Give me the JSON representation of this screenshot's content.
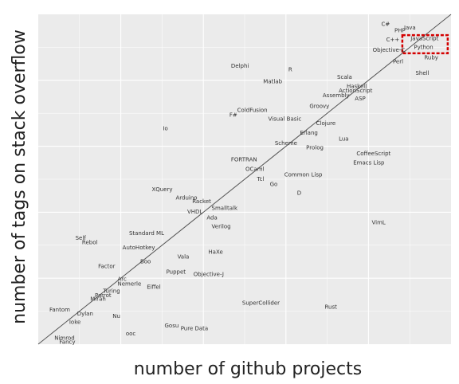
{
  "chart_data": {
    "type": "scatter",
    "title": "",
    "xlabel": "number of github projects",
    "ylabel": "number of tags on stack overflow",
    "xlim": [
      0,
      100
    ],
    "ylim": [
      0,
      100
    ],
    "grid": true,
    "diagonal_line": true,
    "highlight_box": {
      "x0": 88.2,
      "y0": 88.2,
      "x1": 99.2,
      "y1": 93.7,
      "color": "#d40000"
    },
    "points": [
      {
        "name": "C#",
        "x": 83.1,
        "y": 96.5
      },
      {
        "name": "Java",
        "x": 88.6,
        "y": 95.4
      },
      {
        "name": "PHP",
        "x": 86.3,
        "y": 94.6
      },
      {
        "name": "C++",
        "x": 84.3,
        "y": 91.8
      },
      {
        "name": "JavaScript",
        "x": 90.2,
        "y": 92.2
      },
      {
        "name": "Python",
        "x": 91.0,
        "y": 89.5
      },
      {
        "name": "Objective-C",
        "x": 81.0,
        "y": 88.7
      },
      {
        "name": "Ruby",
        "x": 93.5,
        "y": 86.4
      },
      {
        "name": "Perl",
        "x": 85.9,
        "y": 85.1
      },
      {
        "name": "Shell",
        "x": 91.4,
        "y": 81.6
      },
      {
        "name": "Delphi",
        "x": 46.7,
        "y": 83.8
      },
      {
        "name": "R",
        "x": 60.6,
        "y": 82.7
      },
      {
        "name": "Scala",
        "x": 72.4,
        "y": 80.4
      },
      {
        "name": "Matlab",
        "x": 54.5,
        "y": 79.1
      },
      {
        "name": "Haskell",
        "x": 74.7,
        "y": 77.6
      },
      {
        "name": "ActionScript",
        "x": 72.8,
        "y": 76.3
      },
      {
        "name": "Assembly",
        "x": 68.9,
        "y": 74.9
      },
      {
        "name": "ASP",
        "x": 76.7,
        "y": 73.9
      },
      {
        "name": "Groovy",
        "x": 65.7,
        "y": 71.6
      },
      {
        "name": "ColdFusion",
        "x": 48.2,
        "y": 70.4
      },
      {
        "name": "F#",
        "x": 46.3,
        "y": 69.0
      },
      {
        "name": "Visual Basic",
        "x": 55.7,
        "y": 67.7
      },
      {
        "name": "Clojure",
        "x": 67.3,
        "y": 66.4
      },
      {
        "name": "Io",
        "x": 30.2,
        "y": 64.8
      },
      {
        "name": "Erlang",
        "x": 63.4,
        "y": 63.5
      },
      {
        "name": "Lua",
        "x": 72.8,
        "y": 61.7
      },
      {
        "name": "Scheme",
        "x": 57.3,
        "y": 60.4
      },
      {
        "name": "Prolog",
        "x": 64.9,
        "y": 59.1
      },
      {
        "name": "CoffeeScript",
        "x": 77.1,
        "y": 57.3
      },
      {
        "name": "FORTRAN",
        "x": 46.7,
        "y": 55.4
      },
      {
        "name": "Emacs Lisp",
        "x": 76.3,
        "y": 54.5
      },
      {
        "name": "OCaml",
        "x": 50.2,
        "y": 52.5
      },
      {
        "name": "Common Lisp",
        "x": 59.6,
        "y": 50.8
      },
      {
        "name": "Tcl",
        "x": 53.0,
        "y": 49.5
      },
      {
        "name": "Go",
        "x": 56.1,
        "y": 47.9
      },
      {
        "name": "XQuery",
        "x": 27.5,
        "y": 46.4
      },
      {
        "name": "D",
        "x": 62.7,
        "y": 45.3
      },
      {
        "name": "Arduino",
        "x": 33.3,
        "y": 43.9
      },
      {
        "name": "Racket",
        "x": 37.3,
        "y": 42.8
      },
      {
        "name": "Smalltalk",
        "x": 42.0,
        "y": 40.7
      },
      {
        "name": "VHDL",
        "x": 36.1,
        "y": 39.6
      },
      {
        "name": "Ada",
        "x": 40.8,
        "y": 37.8
      },
      {
        "name": "VimL",
        "x": 80.8,
        "y": 36.3
      },
      {
        "name": "Verilog",
        "x": 42.0,
        "y": 35.2
      },
      {
        "name": "Standard ML",
        "x": 22.0,
        "y": 33.1
      },
      {
        "name": "Self",
        "x": 9.0,
        "y": 31.6
      },
      {
        "name": "Rebol",
        "x": 10.6,
        "y": 30.3
      },
      {
        "name": "AutoHotkey",
        "x": 20.4,
        "y": 28.7
      },
      {
        "name": "HaXe",
        "x": 41.2,
        "y": 27.4
      },
      {
        "name": "Vala",
        "x": 33.7,
        "y": 26.0
      },
      {
        "name": "Boo",
        "x": 24.7,
        "y": 24.5
      },
      {
        "name": "Factor",
        "x": 14.5,
        "y": 23.1
      },
      {
        "name": "Puppet",
        "x": 31.0,
        "y": 21.4
      },
      {
        "name": "Objective-J",
        "x": 37.6,
        "y": 20.6
      },
      {
        "name": "Arc",
        "x": 19.2,
        "y": 19.2
      },
      {
        "name": "Nemerle",
        "x": 19.2,
        "y": 17.8
      },
      {
        "name": "Eiffel",
        "x": 26.3,
        "y": 16.8
      },
      {
        "name": "Turing",
        "x": 15.7,
        "y": 15.6
      },
      {
        "name": "Parrot",
        "x": 13.7,
        "y": 14.3
      },
      {
        "name": "Mirah",
        "x": 12.6,
        "y": 13.2
      },
      {
        "name": "SuperCollider",
        "x": 49.4,
        "y": 11.9
      },
      {
        "name": "Rust",
        "x": 69.4,
        "y": 10.8
      },
      {
        "name": "Fantom",
        "x": 2.7,
        "y": 9.9
      },
      {
        "name": "Dylan",
        "x": 9.4,
        "y": 8.7
      },
      {
        "name": "Nu",
        "x": 18.0,
        "y": 8.0
      },
      {
        "name": "Ioke",
        "x": 7.5,
        "y": 6.2
      },
      {
        "name": "Gosu",
        "x": 30.6,
        "y": 5.1
      },
      {
        "name": "Pure Data",
        "x": 34.5,
        "y": 4.2
      },
      {
        "name": "ooc",
        "x": 21.2,
        "y": 2.6
      },
      {
        "name": "Nimrod",
        "x": 3.9,
        "y": 1.3
      },
      {
        "name": "Fancy",
        "x": 5.1,
        "y": 0.1
      }
    ]
  }
}
